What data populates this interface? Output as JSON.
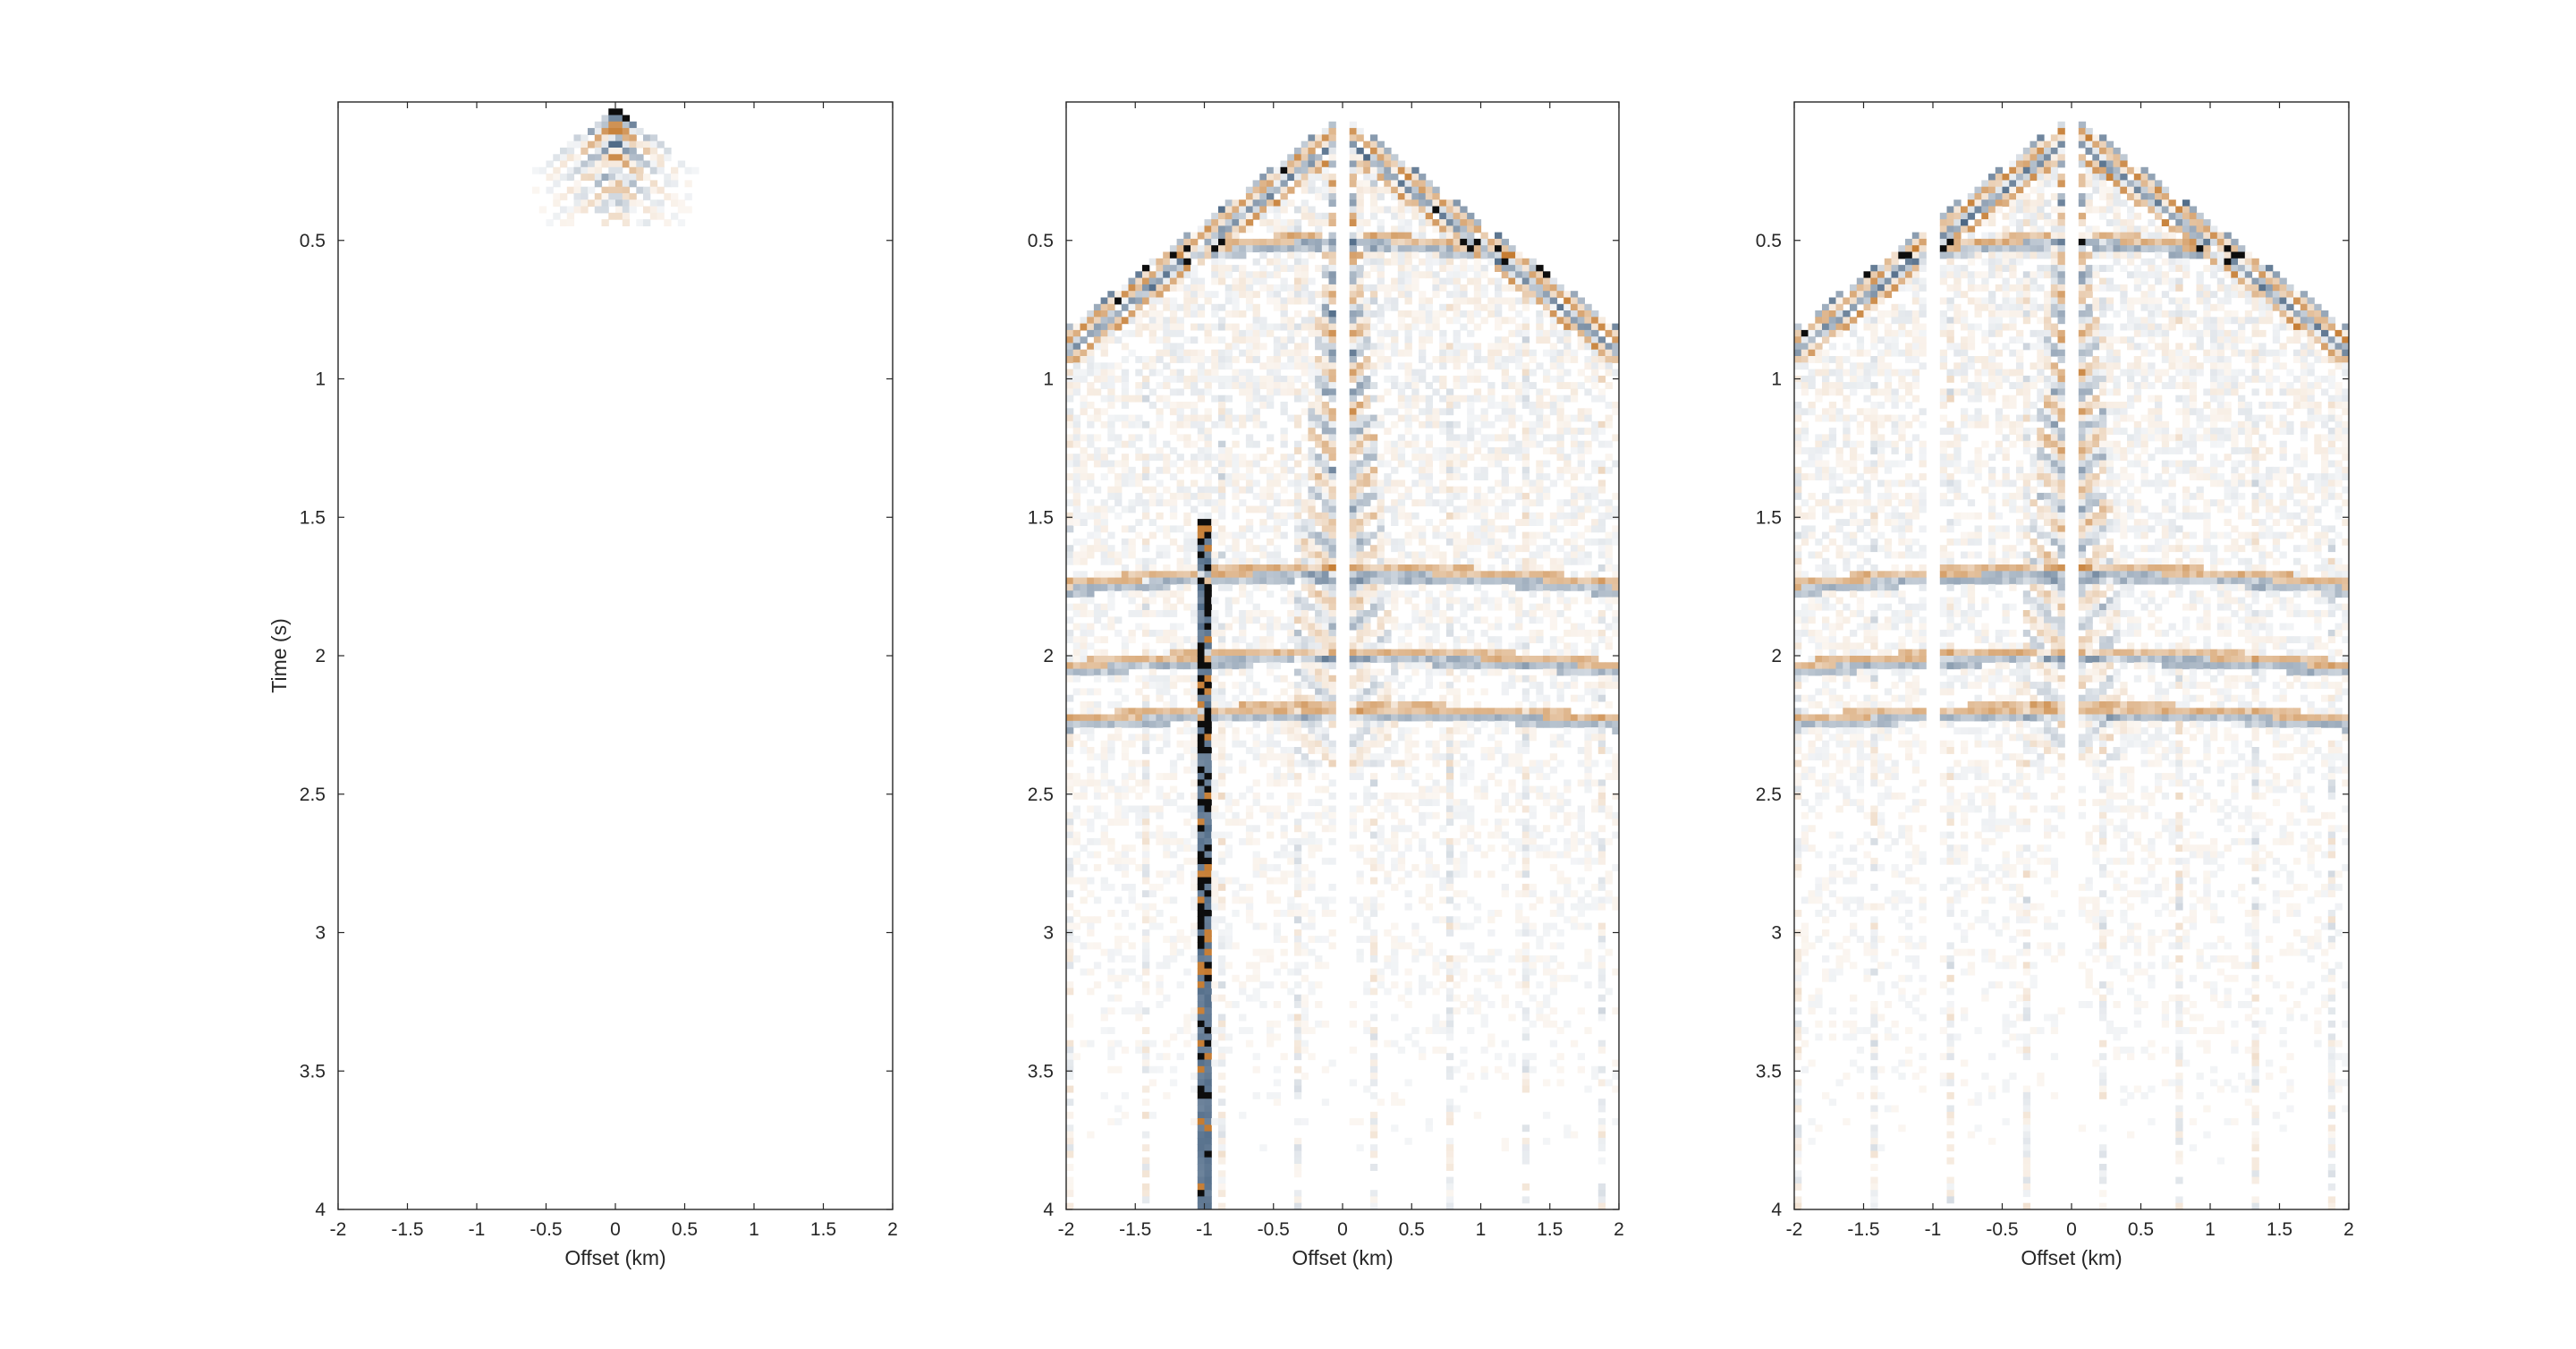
{
  "chart_data": [
    {
      "type": "heatmap",
      "title": "",
      "xlabel": "Offset (km)",
      "ylabel": "Time (s)",
      "xlim": [
        -2,
        2
      ],
      "ylim": [
        0,
        4
      ],
      "y_reversed": true,
      "x_ticks": [
        "-2",
        "-1.5",
        "-1",
        "-0.5",
        "0",
        "0.5",
        "1",
        "1.5",
        "2"
      ],
      "y_ticks": [
        "0.5",
        "1",
        "1.5",
        "2",
        "2.5",
        "3",
        "3.5",
        "4"
      ],
      "colormap": [
        "#3c5a7a",
        "#ffffff",
        "#c0701f"
      ],
      "energy": "weak",
      "features": {
        "direct_arrival_time_at_zero_offset_s": 0.0,
        "direct_arrival_time_at_2km_s": 0.0,
        "trace_gaps_km": [],
        "strong_trace_km": []
      }
    },
    {
      "type": "heatmap",
      "title": "",
      "xlabel": "Offset (km)",
      "ylabel": "",
      "xlim": [
        -2,
        2
      ],
      "ylim": [
        0,
        4
      ],
      "y_reversed": true,
      "x_ticks": [
        "-2",
        "-1.5",
        "-1",
        "-0.5",
        "0",
        "0.5",
        "1",
        "1.5",
        "2"
      ],
      "y_ticks": [
        "0.5",
        "1",
        "1.5",
        "2",
        "2.5",
        "3",
        "3.5",
        "4"
      ],
      "colormap": [
        "#3c5a7a",
        "#ffffff",
        "#c0701f"
      ],
      "energy": "strong",
      "features": {
        "direct_arrival_time_at_2km_s": 0.85,
        "reflection_times_s": [
          0.5,
          1.7,
          2.0,
          2.2
        ],
        "trace_gaps_km": [
          0.0
        ],
        "strong_trace_km": [
          -1.0
        ]
      }
    },
    {
      "type": "heatmap",
      "title": "",
      "xlabel": "Offset (km)",
      "ylabel": "",
      "xlim": [
        -2,
        2
      ],
      "ylim": [
        0,
        4
      ],
      "y_reversed": true,
      "x_ticks": [
        "-2",
        "-1.5",
        "-1",
        "-0.5",
        "0",
        "0.5",
        "1",
        "1.5",
        "2"
      ],
      "y_ticks": [
        "0.5",
        "1",
        "1.5",
        "2",
        "2.5",
        "3",
        "3.5",
        "4"
      ],
      "colormap": [
        "#3c5a7a",
        "#ffffff",
        "#c0701f"
      ],
      "energy": "strong",
      "features": {
        "direct_arrival_time_at_2km_s": 0.85,
        "reflection_times_s": [
          0.5,
          1.7,
          2.0,
          2.2
        ],
        "trace_gaps_km": [
          -1.0,
          0.0
        ],
        "strong_trace_km": []
      }
    }
  ]
}
